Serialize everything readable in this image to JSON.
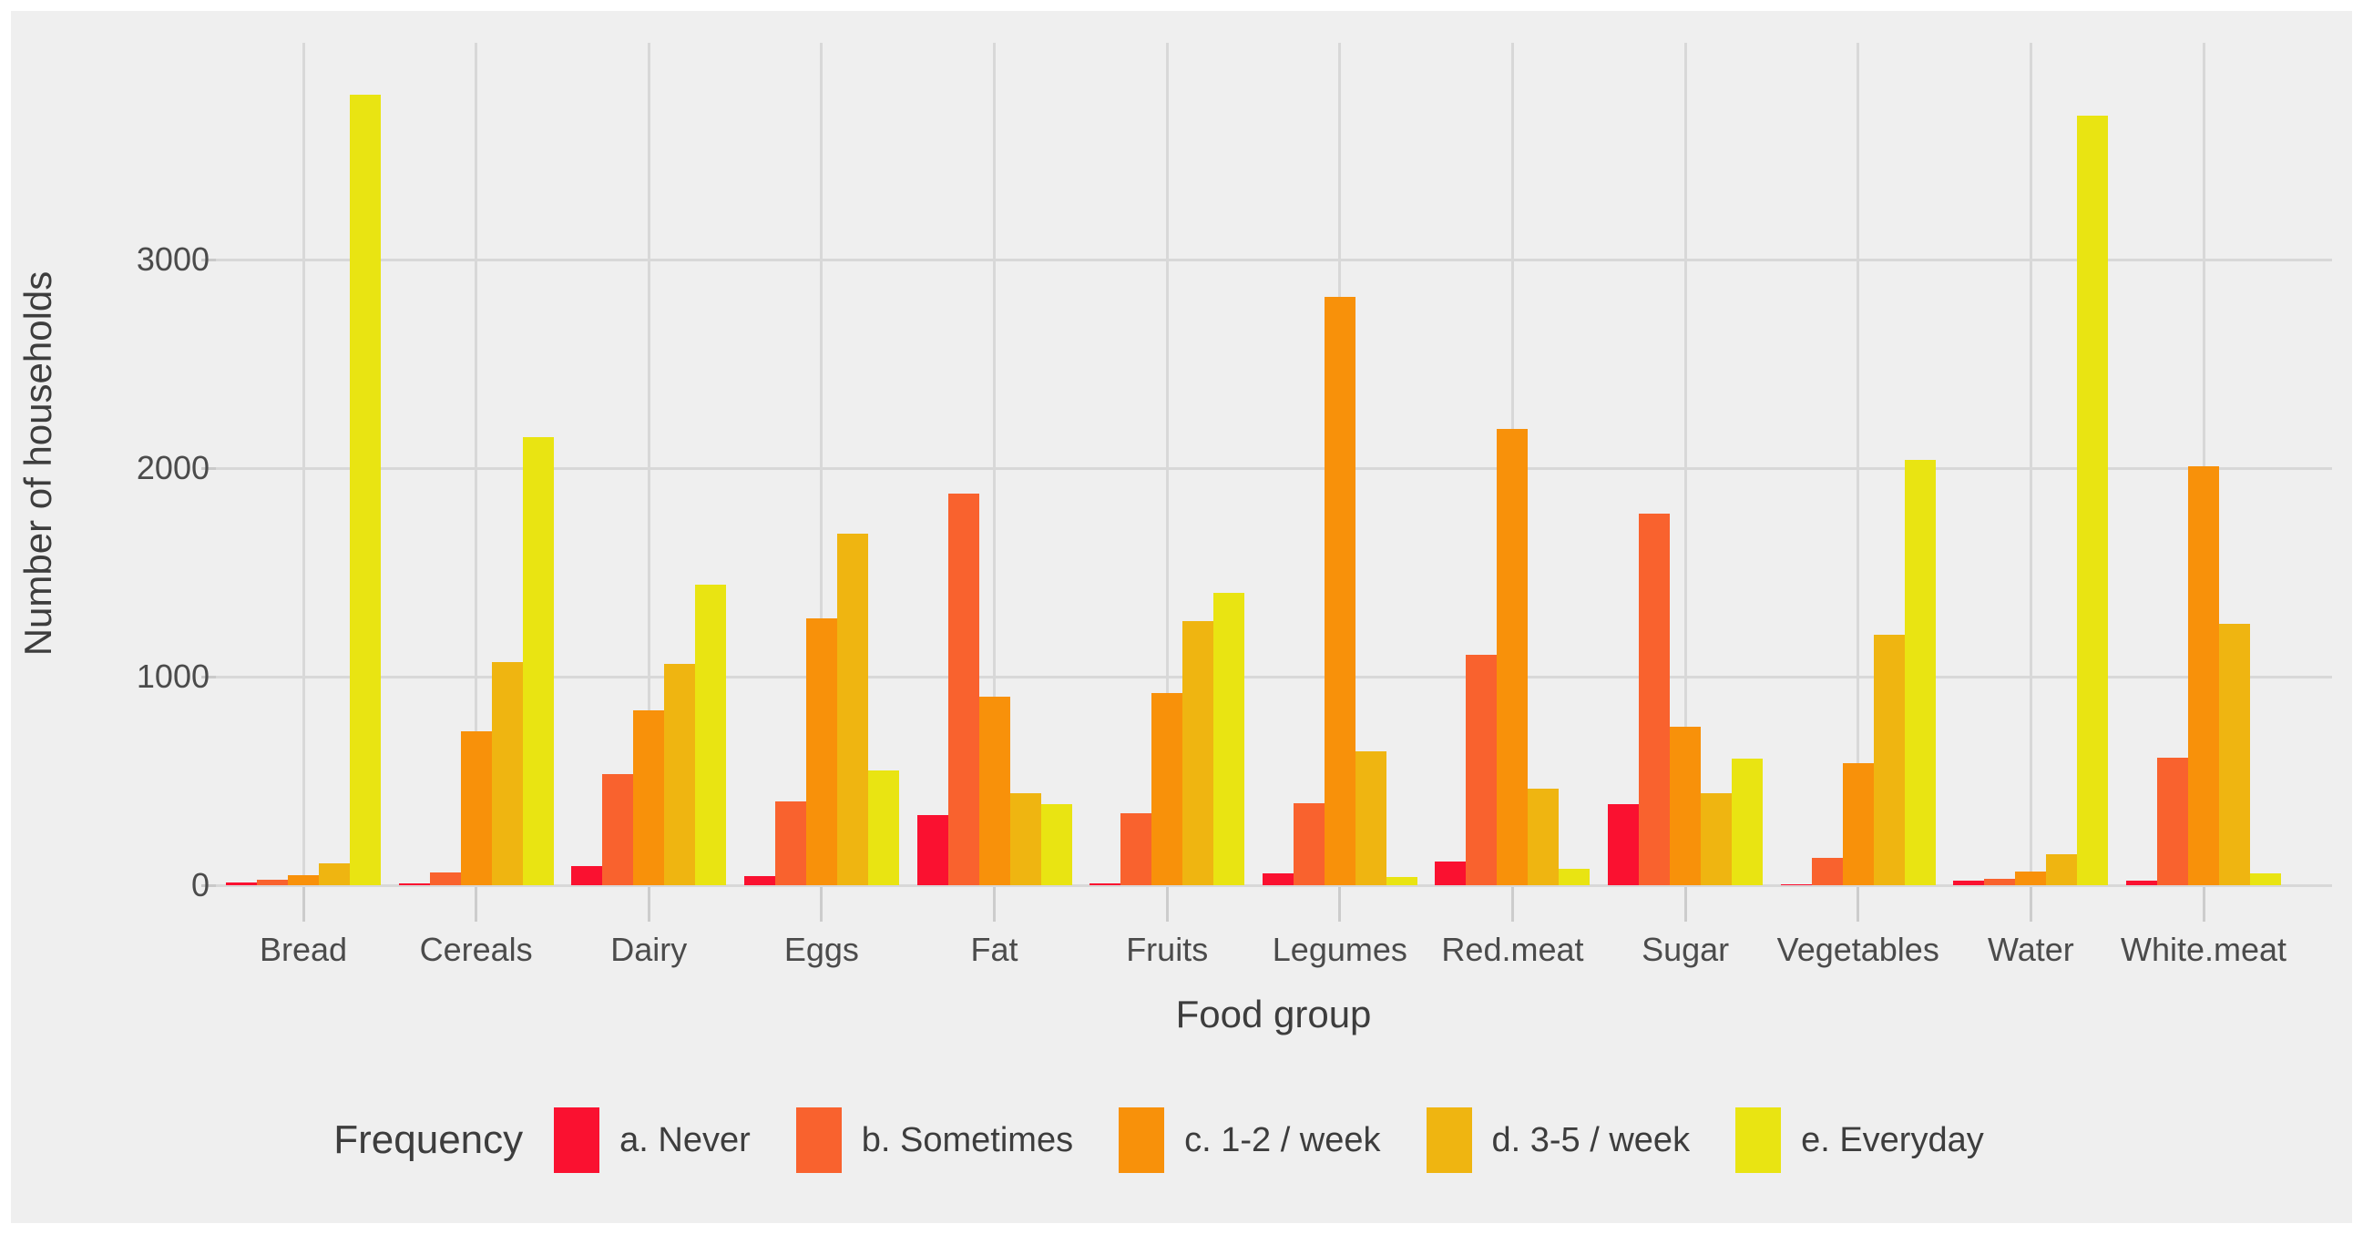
{
  "chart_data": {
    "type": "bar",
    "title": "",
    "xlabel": "Food group",
    "ylabel": "Number of households",
    "legend_title": "Frequency",
    "legend_position": "bottom",
    "grid": true,
    "ylim": [
      0,
      4040
    ],
    "yticks": [
      0,
      1000,
      2000,
      3000
    ],
    "categories": [
      "Bread",
      "Cereals",
      "Dairy",
      "Eggs",
      "Fat",
      "Fruits",
      "Legumes",
      "Red.meat",
      "Sugar",
      "Vegetables",
      "Water",
      "White.meat"
    ],
    "series": [
      {
        "name": "a. Never",
        "color": "#fa1130",
        "values": [
          15,
          10,
          90,
          45,
          335,
          10,
          55,
          115,
          390,
          5,
          20,
          20
        ]
      },
      {
        "name": "b. Sometimes",
        "color": "#f9622e",
        "values": [
          25,
          60,
          535,
          400,
          1880,
          345,
          395,
          1105,
          1780,
          130,
          30,
          610
        ]
      },
      {
        "name": "c. 1-2 / week",
        "color": "#f8910a",
        "values": [
          50,
          740,
          840,
          1280,
          905,
          920,
          2820,
          2190,
          760,
          585,
          65,
          2010
        ]
      },
      {
        "name": "d. 3-5 / week",
        "color": "#efb511",
        "values": [
          105,
          1070,
          1060,
          1685,
          440,
          1265,
          640,
          465,
          440,
          1200,
          150,
          1255
        ]
      },
      {
        "name": "e. Everyday",
        "color": "#e9e412",
        "values": [
          3790,
          2150,
          1440,
          550,
          390,
          1400,
          40,
          80,
          605,
          2040,
          3690,
          55
        ]
      }
    ],
    "colors": {
      "figure_background": "#efefef",
      "page_background": "#ffffff",
      "gridline": "#d8d8d8",
      "tick_mark": "#c9c9c9",
      "tick_text": "#4b4b4b",
      "title_text": "#3d3d3d"
    }
  }
}
